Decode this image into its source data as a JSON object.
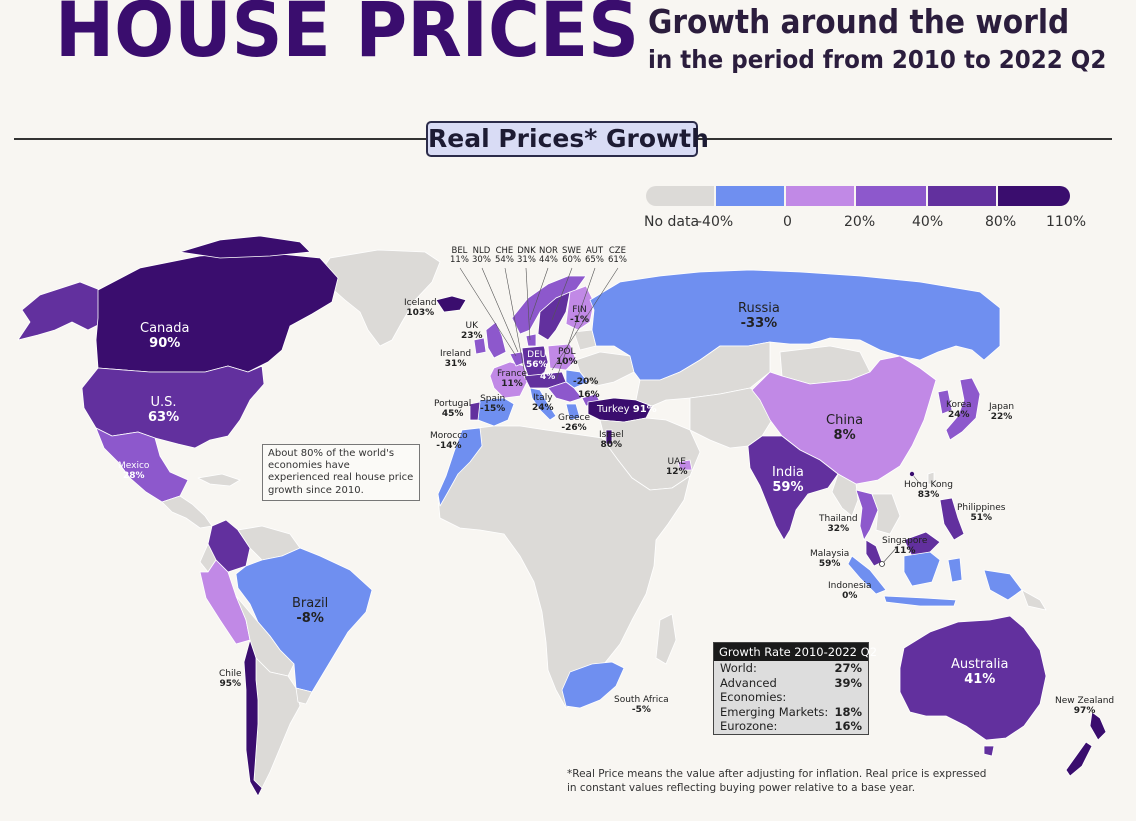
{
  "header": {
    "title": "HOUSE PRICES",
    "subtitle_line1": "Growth around the world",
    "subtitle_line2": "in the period from 2010 to 2022 Q2",
    "section_title": "Real Prices* Growth"
  },
  "legend": {
    "labels": [
      "No data",
      "-40%",
      "0",
      "20%",
      "40%",
      "80%",
      "110%"
    ],
    "colors": [
      "#dcdad7",
      "#6f8ff0",
      "#c189e6",
      "#8d58cc",
      "#62309e",
      "#3a0d6e"
    ]
  },
  "countries": {
    "canada": {
      "name": "Canada",
      "value": "90%"
    },
    "us": {
      "name": "U.S.",
      "value": "63%"
    },
    "mexico": {
      "name": "Mexico",
      "value": "28%"
    },
    "brazil": {
      "name": "Brazil",
      "value": "-8%"
    },
    "chile": {
      "name": "Chile",
      "value": "95%"
    },
    "iceland": {
      "name": "Iceland",
      "value": "103%"
    },
    "uk": {
      "name": "UK",
      "value": "23%"
    },
    "ireland": {
      "name": "Ireland",
      "value": "31%"
    },
    "france": {
      "name": "France",
      "value": "11%"
    },
    "portugal": {
      "name": "Portugal",
      "value": "45%"
    },
    "spain": {
      "name": "Spain",
      "value": "-15%"
    },
    "italy": {
      "name": "Italy",
      "value": "24%"
    },
    "greece": {
      "name": "Greece",
      "value": "-26%"
    },
    "morocco": {
      "name": "Morocco",
      "value": "-14%"
    },
    "deu": {
      "name": "DEU",
      "value": "56%"
    },
    "pol": {
      "name": "POL",
      "value": "10%"
    },
    "fin": {
      "name": "FIN",
      "value": "-1%"
    },
    "turkey": {
      "name": "Turkey",
      "value": "91%"
    },
    "israel": {
      "name": "Israel",
      "value": "80%"
    },
    "uae": {
      "name": "UAE",
      "value": "12%"
    },
    "russia": {
      "name": "Russia",
      "value": "-33%"
    },
    "china": {
      "name": "China",
      "value": "8%"
    },
    "india": {
      "name": "India",
      "value": "59%"
    },
    "korea": {
      "name": "Korea",
      "value": "24%"
    },
    "japan": {
      "name": "Japan",
      "value": "22%"
    },
    "hongkong": {
      "name": "Hong Kong",
      "value": "83%"
    },
    "thailand": {
      "name": "Thailand",
      "value": "32%"
    },
    "philippines": {
      "name": "Philippines",
      "value": "51%"
    },
    "singapore": {
      "name": "Singapore",
      "value": "11%"
    },
    "malaysia": {
      "name": "Malaysia",
      "value": "59%"
    },
    "indonesia": {
      "name": "Indonesia",
      "value": "0%"
    },
    "australia": {
      "name": "Australia",
      "value": "41%"
    },
    "newzealand": {
      "name": "New Zealand",
      "value": "97%"
    },
    "southafrica": {
      "name": "South Africa",
      "value": "-5%"
    },
    "hun": {
      "value": "-20%"
    },
    "blk": {
      "value": "16%"
    },
    "cro": {
      "value": "4%"
    }
  },
  "europe_callouts": [
    {
      "code": "BEL",
      "value": "11%"
    },
    {
      "code": "NLD",
      "value": "30%"
    },
    {
      "code": "CHE",
      "value": "54%"
    },
    {
      "code": "DNK",
      "value": "31%"
    },
    {
      "code": "NOR",
      "value": "44%"
    },
    {
      "code": "SWE",
      "value": "60%"
    },
    {
      "code": "AUT",
      "value": "65%"
    },
    {
      "code": "CZE",
      "value": "61%"
    }
  ],
  "note": "About 80% of the world's economies have experienced real house price growth since 2010.",
  "growth_table": {
    "title": "Growth Rate 2010-2022 Q2",
    "rows": [
      {
        "label": "World:",
        "value": "27%"
      },
      {
        "label": "Advanced Economies:",
        "value": "39%"
      },
      {
        "label": "Emerging Markets:",
        "value": "18%"
      },
      {
        "label": "Eurozone:",
        "value": "16%"
      }
    ]
  },
  "footnote": "*Real Price means the value after adjusting for inflation. Real price is expressed in constant values reflecting buying power relative to a base year."
}
